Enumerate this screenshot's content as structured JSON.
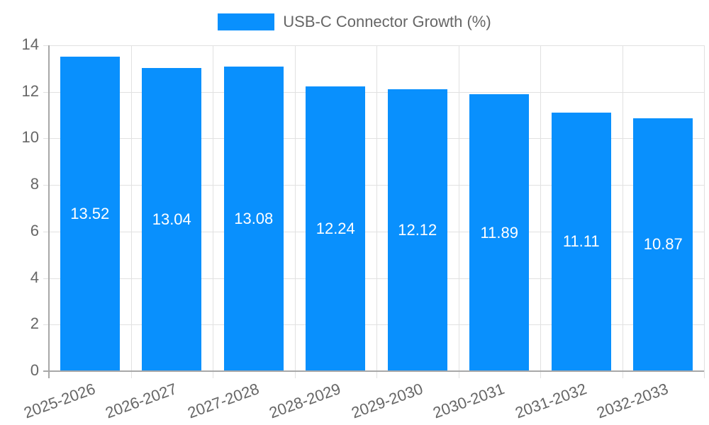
{
  "chart_data": {
    "type": "bar",
    "title": "",
    "legend": [
      {
        "label": "USB-C Connector Growth (%)",
        "color": "#0990fd"
      }
    ],
    "legend_position": "top",
    "categories": [
      "2025-2026",
      "2026-2027",
      "2027-2028",
      "2028-2029",
      "2029-2030",
      "2030-2031",
      "2031-2032",
      "2032-2033"
    ],
    "series": [
      {
        "name": "USB-C Connector Growth (%)",
        "values": [
          13.52,
          13.04,
          13.08,
          12.24,
          12.12,
          11.89,
          11.11,
          10.87
        ],
        "color": "#0990fd"
      }
    ],
    "data_labels": [
      "13.52",
      "13.04",
      "13.08",
      "12.24",
      "12.12",
      "11.89",
      "11.11",
      "10.87"
    ],
    "xlabel": "",
    "ylabel": "",
    "ylim": [
      0,
      14
    ],
    "yticks": [
      "0",
      "2",
      "4",
      "6",
      "8",
      "10",
      "12",
      "14"
    ],
    "grid": true
  }
}
